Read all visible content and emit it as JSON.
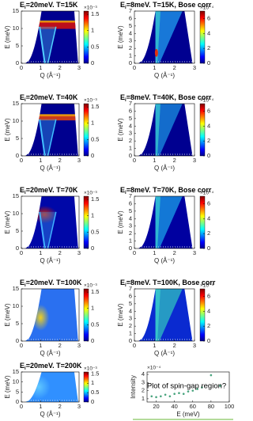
{
  "chart_data": [
    {
      "type": "heatmap",
      "title": {
        "symbol": "E",
        "subscript": "i",
        "text": "=20meV. T=15K"
      },
      "xlabel": "Q (Å⁻¹)",
      "ylabel": "E (meV)",
      "xlim": [
        0,
        3
      ],
      "ylim": [
        0,
        15
      ],
      "xticks": [
        0,
        1,
        2,
        3
      ],
      "yticks": [
        0,
        5,
        10,
        15
      ],
      "colorbar": {
        "label": "×10⁻³",
        "lim": [
          0,
          1.6
        ],
        "ticks": [
          0,
          0.5,
          1,
          1.5
        ]
      }
    },
    {
      "type": "heatmap",
      "title": {
        "symbol": "E",
        "subscript": "i",
        "text": "=8meV. T=15K, Bose corr"
      },
      "xlabel": "Q (Å⁻¹)",
      "ylabel": "E (meV)",
      "xlim": [
        0,
        3
      ],
      "ylim": [
        0,
        7
      ],
      "xticks": [
        0,
        1,
        2,
        3
      ],
      "yticks": [
        0,
        1,
        2,
        3,
        4,
        5,
        6,
        7
      ],
      "colorbar": {
        "label": "×10⁻⁴",
        "lim": [
          0,
          7
        ],
        "ticks": [
          0,
          2,
          4,
          6
        ]
      }
    },
    {
      "type": "heatmap",
      "title": {
        "symbol": "E",
        "subscript": "i",
        "text": "=20meV. T=40K"
      },
      "xlabel": "Q (Å⁻¹)",
      "ylabel": "E (meV)",
      "xlim": [
        0,
        3
      ],
      "ylim": [
        0,
        15
      ],
      "xticks": [
        0,
        1,
        2,
        3
      ],
      "yticks": [
        0,
        5,
        10,
        15
      ],
      "colorbar": {
        "label": "×10⁻³",
        "lim": [
          0,
          1.6
        ],
        "ticks": [
          0,
          0.5,
          1,
          1.5
        ]
      }
    },
    {
      "type": "heatmap",
      "title": {
        "symbol": "E",
        "subscript": "i",
        "text": "=8meV. T=40K, Bose corr"
      },
      "xlabel": "Q (Å⁻¹)",
      "ylabel": "E (meV)",
      "xlim": [
        0,
        3
      ],
      "ylim": [
        0,
        7
      ],
      "xticks": [
        0,
        1,
        2,
        3
      ],
      "yticks": [
        0,
        1,
        2,
        3,
        4,
        5,
        6,
        7
      ],
      "colorbar": {
        "label": "×10⁻⁴",
        "lim": [
          0,
          7
        ],
        "ticks": [
          0,
          2,
          4,
          6
        ]
      }
    },
    {
      "type": "heatmap",
      "title": {
        "symbol": "E",
        "subscript": "i",
        "text": "=20meV. T=70K"
      },
      "xlabel": "Q (Å⁻¹)",
      "ylabel": "E (meV)",
      "xlim": [
        0,
        3
      ],
      "ylim": [
        0,
        15
      ],
      "xticks": [
        0,
        1,
        2,
        3
      ],
      "yticks": [
        0,
        5,
        10,
        15
      ],
      "colorbar": {
        "label": "×10⁻³",
        "lim": [
          0,
          1.6
        ],
        "ticks": [
          0,
          0.5,
          1,
          1.5
        ]
      }
    },
    {
      "type": "heatmap",
      "title": {
        "symbol": "E",
        "subscript": "i",
        "text": "=8meV. T=70K, Bose corr"
      },
      "xlabel": "Q (Å⁻¹)",
      "ylabel": "E (meV)",
      "xlim": [
        0,
        3
      ],
      "ylim": [
        0,
        7
      ],
      "xticks": [
        0,
        1,
        2,
        3
      ],
      "yticks": [
        0,
        1,
        2,
        3,
        4,
        5,
        6,
        7
      ],
      "colorbar": {
        "label": "×10⁻⁴",
        "lim": [
          0,
          7
        ],
        "ticks": [
          0,
          2,
          4,
          6
        ]
      }
    },
    {
      "type": "heatmap",
      "title": {
        "symbol": "E",
        "subscript": "i",
        "text": "=20meV. T=100K"
      },
      "xlabel": "Q (Å⁻¹)",
      "ylabel": "E (meV)",
      "xlim": [
        0,
        3
      ],
      "ylim": [
        0,
        15
      ],
      "xticks": [
        0,
        1,
        2,
        3
      ],
      "yticks": [
        0,
        5,
        10,
        15
      ],
      "colorbar": {
        "label": "×10⁻³",
        "lim": [
          0,
          1.6
        ],
        "ticks": [
          0,
          0.5,
          1,
          1.5
        ]
      }
    },
    {
      "type": "heatmap",
      "title": {
        "symbol": "E",
        "subscript": "i",
        "text": "=8meV. T=100K, Bose corr"
      },
      "xlabel": "Q (Å⁻¹)",
      "ylabel": "E (meV)",
      "xlim": [
        0,
        3
      ],
      "ylim": [
        0,
        7
      ],
      "xticks": [
        0,
        1,
        2,
        3
      ],
      "yticks": [
        0,
        1,
        2,
        3,
        4,
        5,
        6,
        7
      ],
      "colorbar": {
        "label": "×10⁻⁴",
        "lim": [
          0,
          7
        ],
        "ticks": [
          0,
          2,
          4,
          6
        ]
      }
    },
    {
      "type": "heatmap",
      "title": {
        "symbol": "E",
        "subscript": "i",
        "text": "=20meV. T=200K"
      },
      "xlabel": "Q (Å⁻¹)",
      "ylabel": "E (meV)",
      "xlim": [
        0,
        3
      ],
      "ylim": [
        0,
        15
      ],
      "xticks": [
        0,
        1,
        2,
        3
      ],
      "yticks": [
        0,
        5,
        10,
        15
      ],
      "colorbar": {
        "label": "×10⁻³",
        "lim": [
          0,
          1.6
        ],
        "ticks": [
          0,
          0.5,
          1,
          1.5
        ]
      }
    },
    {
      "type": "scatter",
      "annotation": "Plot of spin-gap region?",
      "xlabel": "E (meV)",
      "ylabel": "Intensity",
      "yscale_label": "×10⁻⁴",
      "xlim": [
        10,
        100
      ],
      "ylim": [
        0.6,
        4.3
      ],
      "xticks": [
        20,
        40,
        60,
        80,
        100
      ],
      "yticks": [
        1,
        2,
        3,
        4
      ],
      "color": "#4aa57f",
      "x": [
        15,
        20,
        25,
        30,
        35,
        40,
        45,
        50,
        55,
        60,
        65,
        70,
        80,
        90
      ],
      "values": [
        1.3,
        1.2,
        1.3,
        1.5,
        1.3,
        1.6,
        1.7,
        1.6,
        1.9,
        2.0,
        2.2,
        2.4,
        3.9,
        2.6
      ]
    }
  ]
}
